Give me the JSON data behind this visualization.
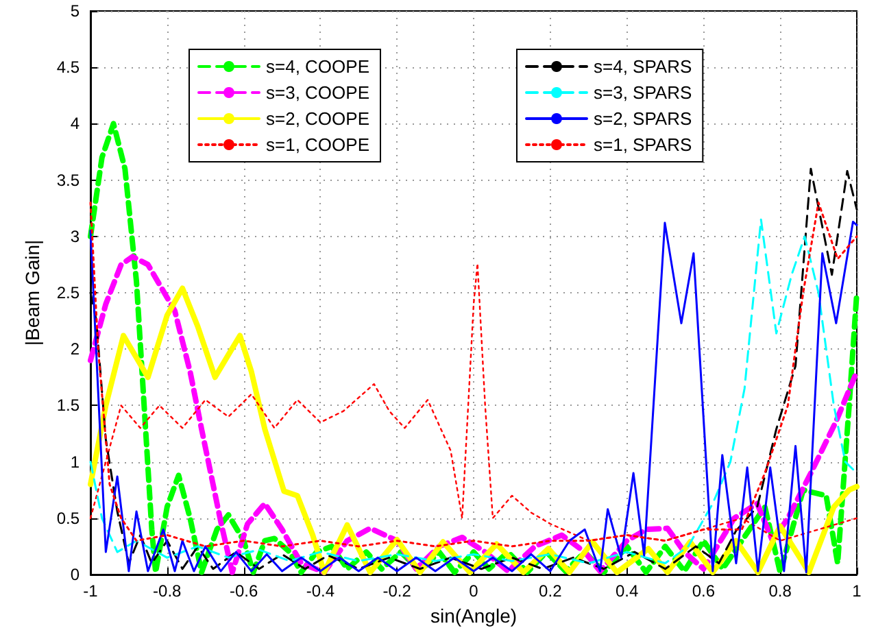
{
  "chart_data": {
    "type": "line",
    "xlabel": "sin(Angle)",
    "ylabel": "|Beam Gain|",
    "xlim": [
      -1,
      1
    ],
    "xticks": [
      -1,
      -0.8,
      -0.6,
      -0.4,
      -0.2,
      0,
      0.2,
      0.4,
      0.6,
      0.8,
      1
    ],
    "ylim": [
      0,
      5
    ],
    "yticks": [
      0,
      0.5,
      1,
      1.5,
      2,
      2.5,
      3,
      3.5,
      4,
      4.5,
      5
    ],
    "grid": true,
    "legend": "top",
    "marker": "none",
    "series": [
      {
        "name": "s=4, COOPE",
        "color": "#00ff00",
        "line_style": "dashed",
        "x": [
          -1,
          -0.97,
          -0.94,
          -0.91,
          -0.88,
          -0.86,
          -0.84,
          -0.83,
          -0.8,
          -0.77,
          -0.74,
          -0.71,
          -0.67,
          -0.64,
          -0.6,
          -0.575,
          -0.545,
          -0.52,
          -0.48,
          -0.45,
          -0.41,
          -0.37,
          -0.33,
          -0.28,
          -0.24,
          -0.19,
          -0.14,
          -0.09,
          -0.05,
          0,
          0.04,
          0.09,
          0.14,
          0.19,
          0.24,
          0.29,
          0.34,
          0.4,
          0.45,
          0.5,
          0.55,
          0.6,
          0.65,
          0.7,
          0.76,
          0.8,
          0.86,
          0.92,
          0.95,
          0.98,
          1
        ],
        "values": [
          3.0,
          3.7,
          4.0,
          3.6,
          2.6,
          1.5,
          0.4,
          0.02,
          0.6,
          0.88,
          0.5,
          0.02,
          0.4,
          0.53,
          0.3,
          0.02,
          0.3,
          0.32,
          0.2,
          0.02,
          0.2,
          0.25,
          0.05,
          0.2,
          0.05,
          0.2,
          0.03,
          0.2,
          0.02,
          0.2,
          0.05,
          0.2,
          0.02,
          0.2,
          0.03,
          0.2,
          0.02,
          0.25,
          0.02,
          0.25,
          0.03,
          0.3,
          0.05,
          0.3,
          0.6,
          0.02,
          0.75,
          0.7,
          0.1,
          1.5,
          2.5
        ]
      },
      {
        "name": "s=3, COOPE",
        "color": "#ff00ff",
        "line_style": "dashed",
        "x": [
          -1,
          -0.96,
          -0.92,
          -0.89,
          -0.85,
          -0.78,
          -0.74,
          -0.71,
          -0.66,
          -0.63,
          -0.59,
          -0.545,
          -0.5,
          -0.45,
          -0.39,
          -0.33,
          -0.27,
          -0.2,
          -0.15,
          -0.09,
          -0.03,
          0.03,
          0.09,
          0.16,
          0.23,
          0.29,
          0.33,
          0.4,
          0.45,
          0.506,
          0.55,
          0.6,
          0.68,
          0.74,
          0.78,
          0.82,
          0.88,
          0.946,
          1
        ],
        "values": [
          1.9,
          2.4,
          2.75,
          2.82,
          2.75,
          2.34,
          1.8,
          1.29,
          0.47,
          0.02,
          0.45,
          0.63,
          0.4,
          0.1,
          0.02,
          0.3,
          0.41,
          0.3,
          0.05,
          0.25,
          0.33,
          0.2,
          0.03,
          0.25,
          0.35,
          0.2,
          0.03,
          0.3,
          0.4,
          0.41,
          0.2,
          0.05,
          0.5,
          0.63,
          0.3,
          0.5,
          0.9,
          1.36,
          1.8
        ]
      },
      {
        "name": "s=2, COOPE",
        "color": "#ffff00",
        "line_style": "solid",
        "x": [
          -1,
          -0.96,
          -0.914,
          -0.85,
          -0.8,
          -0.76,
          -0.72,
          -0.675,
          -0.64,
          -0.61,
          -0.58,
          -0.545,
          -0.495,
          -0.46,
          -0.42,
          -0.39,
          -0.33,
          -0.27,
          -0.2,
          -0.14,
          -0.08,
          -0.01,
          0.06,
          0.13,
          0.195,
          0.25,
          0.31,
          0.374,
          0.456,
          0.506,
          0.565,
          0.624,
          0.685,
          0.742,
          0.8,
          0.875,
          0.94,
          0.98,
          1
        ],
        "values": [
          0.8,
          1.5,
          2.12,
          1.75,
          2.3,
          2.54,
          2.2,
          1.75,
          1.95,
          2.12,
          1.8,
          1.29,
          0.74,
          0.7,
          0.35,
          0.02,
          0.44,
          0.02,
          0.31,
          0.02,
          0.29,
          0.02,
          0.27,
          0.02,
          0.23,
          0.02,
          0.29,
          0.02,
          0.23,
          0.02,
          0.29,
          0.02,
          0.3,
          0.02,
          0.43,
          0.02,
          0.6,
          0.75,
          0.78
        ]
      },
      {
        "name": "s=1, COOPE",
        "color": "#ff0000",
        "line_style": "dotted",
        "x": [
          -1,
          -0.96,
          -0.92,
          -0.87,
          -0.82,
          -0.76,
          -0.7,
          -0.64,
          -0.58,
          -0.52,
          -0.46,
          -0.4,
          -0.34,
          -0.26,
          -0.22,
          -0.18,
          -0.12,
          -0.08,
          -0.06,
          -0.03,
          0,
          0.01,
          0.03,
          0.05,
          0.1,
          0.15,
          0.2,
          0.3,
          0.4,
          0.5,
          0.6,
          0.7,
          0.8,
          0.9,
          1
        ],
        "values": [
          0.5,
          1.0,
          1.5,
          1.3,
          1.5,
          1.3,
          1.55,
          1.4,
          1.6,
          1.3,
          1.55,
          1.35,
          1.45,
          1.69,
          1.45,
          1.3,
          1.55,
          1.25,
          1.1,
          0.5,
          2.4,
          2.76,
          1.5,
          0.5,
          0.7,
          0.55,
          0.45,
          0.3,
          0.35,
          0.3,
          0.4,
          0.5,
          0.3,
          0.4,
          0.5
        ]
      },
      {
        "name": "s=4, SPARS",
        "color": "#000000",
        "line_style": "dashed",
        "x": [
          -1,
          -0.985,
          -0.96,
          -0.93,
          -0.9,
          -0.87,
          -0.84,
          -0.8,
          -0.76,
          -0.72,
          -0.68,
          -0.62,
          -0.56,
          -0.5,
          -0.44,
          -0.38,
          -0.3,
          -0.22,
          -0.14,
          -0.06,
          0.02,
          0.1,
          0.18,
          0.26,
          0.34,
          0.42,
          0.5,
          0.58,
          0.64,
          0.685,
          0.74,
          0.79,
          0.84,
          0.88,
          0.935,
          0.975,
          1
        ],
        "values": [
          2.5,
          2.26,
          1.2,
          0.56,
          0.1,
          0.35,
          0.1,
          0.3,
          0.05,
          0.25,
          0.05,
          0.2,
          0.05,
          0.18,
          0.05,
          0.17,
          0.05,
          0.15,
          0.05,
          0.15,
          0.05,
          0.15,
          0.05,
          0.15,
          0.05,
          0.2,
          0.05,
          0.25,
          0.1,
          0.39,
          0.6,
          1.29,
          1.85,
          3.6,
          2.66,
          3.58,
          3.24
        ]
      },
      {
        "name": "s=3, SPARS",
        "color": "#00ffff",
        "line_style": "dashed",
        "x": [
          -1,
          -0.97,
          -0.93,
          -0.88,
          -0.8,
          -0.72,
          -0.64,
          -0.56,
          -0.48,
          -0.4,
          -0.3,
          -0.2,
          -0.1,
          0,
          0.1,
          0.2,
          0.3,
          0.4,
          0.5,
          0.56,
          0.624,
          0.67,
          0.707,
          0.75,
          0.79,
          0.83,
          0.864,
          0.9,
          0.94,
          0.97,
          1
        ],
        "values": [
          1.0,
          0.5,
          0.2,
          0.3,
          0.15,
          0.25,
          0.15,
          0.22,
          0.12,
          0.2,
          0.12,
          0.18,
          0.12,
          0.18,
          0.12,
          0.18,
          0.1,
          0.2,
          0.1,
          0.25,
          0.63,
          1.0,
          1.65,
          3.15,
          2.14,
          2.66,
          3.0,
          2.5,
          1.5,
          1.0,
          0.9
        ]
      },
      {
        "name": "s=2, SPARS",
        "color": "#0000ff",
        "line_style": "solid",
        "x": [
          -1,
          -0.96,
          -0.93,
          -0.9,
          -0.88,
          -0.85,
          -0.81,
          -0.78,
          -0.76,
          -0.73,
          -0.7,
          -0.66,
          -0.62,
          -0.58,
          -0.54,
          -0.5,
          -0.45,
          -0.4,
          -0.35,
          -0.3,
          -0.25,
          -0.2,
          -0.15,
          -0.1,
          -0.05,
          0,
          0.05,
          0.1,
          0.15,
          0.2,
          0.25,
          0.29,
          0.33,
          0.35,
          0.385,
          0.417,
          0.445,
          0.499,
          0.542,
          0.574,
          0.624,
          0.649,
          0.685,
          0.714,
          0.742,
          0.774,
          0.81,
          0.84,
          0.868,
          0.91,
          0.946,
          0.99,
          1
        ],
        "values": [
          3.05,
          0.2,
          0.87,
          0.03,
          0.56,
          0.03,
          0.4,
          0.03,
          0.3,
          0.03,
          0.25,
          0.03,
          0.2,
          0.03,
          0.18,
          0.03,
          0.15,
          0.03,
          0.15,
          0.03,
          0.15,
          0.03,
          0.15,
          0.03,
          0.15,
          0.03,
          0.15,
          0.03,
          0.18,
          0.03,
          0.3,
          0.4,
          0.03,
          0.58,
          0.15,
          0.9,
          0.17,
          3.12,
          2.23,
          2.85,
          0.03,
          1.06,
          0.1,
          0.95,
          0.03,
          0.95,
          0.03,
          1.14,
          0.02,
          2.85,
          2.23,
          3.13,
          3.1
        ]
      },
      {
        "name": "s=1, SPARS",
        "color": "#ff0000",
        "line_style": "dotted",
        "x": [
          -1,
          -0.98,
          -0.95,
          -0.92,
          -0.88,
          -0.8,
          -0.7,
          -0.6,
          -0.5,
          -0.4,
          -0.3,
          -0.2,
          -0.1,
          0,
          0.1,
          0.2,
          0.3,
          0.4,
          0.5,
          0.6,
          0.7,
          0.76,
          0.82,
          0.86,
          0.9,
          0.95,
          1
        ],
        "values": [
          3.3,
          2.0,
          0.8,
          0.5,
          0.3,
          0.35,
          0.25,
          0.3,
          0.25,
          0.3,
          0.25,
          0.3,
          0.25,
          0.3,
          0.25,
          0.3,
          0.3,
          0.35,
          0.3,
          0.4,
          0.4,
          0.9,
          1.5,
          2.5,
          3.3,
          2.8,
          3.0
        ]
      }
    ]
  }
}
